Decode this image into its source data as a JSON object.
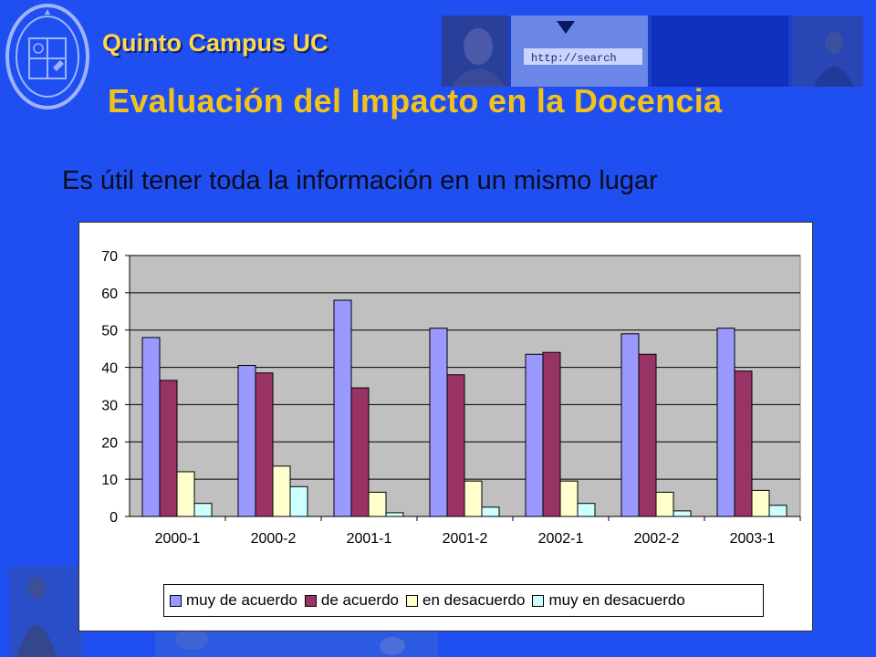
{
  "header": {
    "brand": "Quinto Campus UC",
    "title": "Evaluación del Impacto en la Docencia"
  },
  "slide": {
    "subtitle": "Es útil tener toda la información en un mismo lugar"
  },
  "colors": {
    "background": "#1f4ff0",
    "title": "#f3c21a",
    "brand": "#ffd84a"
  },
  "chart_data": {
    "type": "bar",
    "categories": [
      "2000-1",
      "2000-2",
      "2001-1",
      "2001-2",
      "2002-1",
      "2002-2",
      "2003-1"
    ],
    "series": [
      {
        "name": "muy de acuerdo",
        "color": "#9999ff",
        "values": [
          48,
          40.5,
          58,
          50.5,
          43.5,
          49,
          50.5
        ]
      },
      {
        "name": "de acuerdo",
        "color": "#993366",
        "values": [
          36.5,
          38.5,
          34.5,
          38,
          44,
          43.5,
          39
        ]
      },
      {
        "name": "en desacuerdo",
        "color": "#ffffcc",
        "values": [
          12,
          13.5,
          6.5,
          9.5,
          9.5,
          6.5,
          7
        ]
      },
      {
        "name": "muy en desacuerdo",
        "color": "#ccffff",
        "values": [
          3.5,
          8,
          1,
          2.5,
          3.5,
          1.5,
          3
        ]
      }
    ],
    "ylim": [
      0,
      70
    ],
    "yticks": [
      0,
      10,
      20,
      30,
      40,
      50,
      60,
      70
    ],
    "grid": true,
    "plot_background": "#c0c0c0",
    "legend_position": "bottom"
  }
}
